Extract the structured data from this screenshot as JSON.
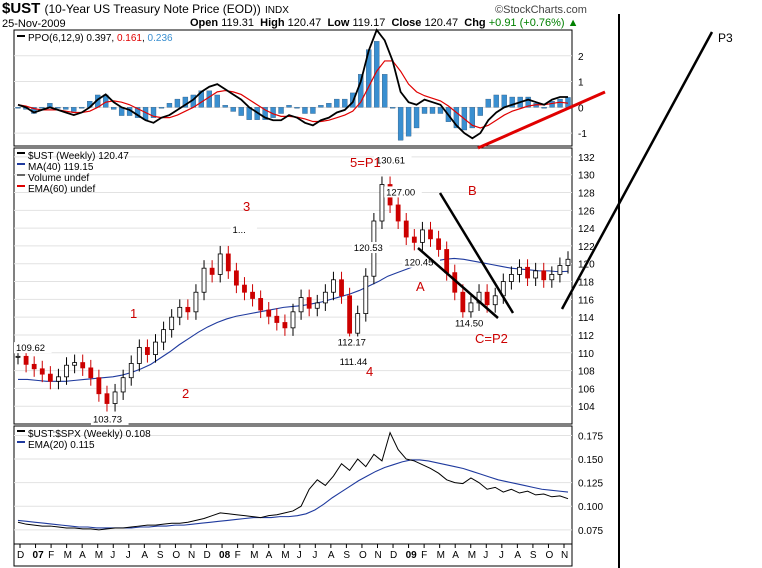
{
  "header": {
    "symbol": "$UST",
    "description": "(10-Year US Treasury Note Price (EOD))",
    "exchange": "INDX",
    "date": "25-Nov-2009",
    "open_label": "Open",
    "open": "119.31",
    "high_label": "High",
    "high": "120.47",
    "low_label": "Low",
    "low": "119.17",
    "close_label": "Close",
    "close": "120.47",
    "chg_label": "Chg",
    "chg": "+0.91 (+0.76%)",
    "logo": "©StockCharts.com"
  },
  "colors": {
    "price": "#000000",
    "ma": "#1f3a9e",
    "ema_red": "#e00000",
    "hist": "#3a8fd0",
    "annotation": "#cc0000"
  },
  "chart_data": [
    {
      "type": "line",
      "panel": "ppo",
      "legend": [
        {
          "label": "PPO(6,12,9)",
          "value": "0.397",
          "color": "#000000"
        },
        {
          "label": "",
          "value": "0.161",
          "color": "#e00000"
        },
        {
          "label": "",
          "value": "0.236",
          "color": "#3a8fd0"
        }
      ],
      "y_ticks": [
        "2",
        "1",
        "0",
        "-1"
      ],
      "ylim": [
        -1.5,
        3
      ],
      "series": [
        {
          "name": "PPO",
          "values": [
            0.1,
            0.0,
            -0.2,
            -0.1,
            0.0,
            -0.1,
            -0.2,
            -0.3,
            -0.2,
            0.0,
            0.3,
            0.5,
            0.2,
            0.0,
            -0.1,
            -0.3,
            -0.5,
            -0.6,
            -0.4,
            -0.3,
            -0.1,
            0.1,
            0.3,
            0.6,
            0.8,
            0.9,
            0.7,
            0.5,
            0.3,
            0.0,
            -0.2,
            -0.4,
            -0.5,
            -0.5,
            -0.3,
            -0.4,
            -0.6,
            -0.7,
            -0.5,
            -0.4,
            -0.2,
            -0.1,
            0.2,
            1.0,
            2.2,
            3.0,
            2.6,
            1.8,
            0.6,
            0.2,
            0.1,
            0.3,
            0.2,
            0.1,
            -0.3,
            -0.7,
            -1.0,
            -1.2,
            -1.0,
            -0.5,
            -0.2,
            0.0,
            0.1,
            0.2,
            0.3,
            0.2,
            0.1,
            0.3,
            0.4,
            0.4
          ]
        },
        {
          "name": "Signal",
          "values": [
            0.1,
            0.05,
            -0.05,
            -0.1,
            -0.1,
            -0.1,
            -0.15,
            -0.2,
            -0.2,
            -0.15,
            0.0,
            0.2,
            0.25,
            0.2,
            0.1,
            -0.05,
            -0.2,
            -0.35,
            -0.4,
            -0.4,
            -0.3,
            -0.15,
            0.0,
            0.2,
            0.4,
            0.6,
            0.65,
            0.6,
            0.5,
            0.3,
            0.1,
            -0.1,
            -0.25,
            -0.35,
            -0.35,
            -0.38,
            -0.45,
            -0.55,
            -0.55,
            -0.5,
            -0.4,
            -0.3,
            -0.15,
            0.2,
            0.8,
            1.4,
            1.8,
            1.8,
            1.4,
            0.9,
            0.6,
            0.45,
            0.35,
            0.25,
            0.05,
            -0.2,
            -0.45,
            -0.7,
            -0.8,
            -0.7,
            -0.5,
            -0.3,
            -0.15,
            -0.05,
            0.05,
            0.1,
            0.1,
            0.15,
            0.2,
            0.16
          ]
        }
      ]
    },
    {
      "type": "line",
      "panel": "price",
      "legend": [
        {
          "label": "$UST (Weekly) 120.47",
          "color": "#000000"
        },
        {
          "label": "MA(40) 119.15",
          "color": "#1f3a9e"
        },
        {
          "label": "Volume undef",
          "color": "#666666"
        },
        {
          "label": "EMA(60) undef",
          "color": "#e00000"
        }
      ],
      "y_ticks": [
        "132",
        "130",
        "128",
        "126",
        "124",
        "122",
        "120",
        "118",
        "116",
        "114",
        "112",
        "110",
        "108",
        "106",
        "104"
      ],
      "ylim": [
        102,
        133
      ],
      "x_labels": [
        "D",
        "07",
        "F",
        "M",
        "A",
        "M",
        "J",
        "J",
        "A",
        "S",
        "O",
        "N",
        "D",
        "08",
        "F",
        "M",
        "A",
        "M",
        "J",
        "J",
        "A",
        "S",
        "O",
        "N",
        "D",
        "09",
        "F",
        "M",
        "A",
        "M",
        "J",
        "J",
        "A",
        "S",
        "O",
        "N"
      ],
      "series": [
        {
          "name": "Close",
          "values": [
            109.6,
            108.7,
            108.2,
            107.6,
            106.8,
            107.3,
            108.6,
            108.9,
            108.3,
            107.2,
            105.4,
            104.3,
            105.6,
            107.2,
            108.8,
            110.6,
            109.8,
            111.2,
            112.6,
            114.0,
            115.1,
            114.6,
            116.8,
            119.5,
            118.8,
            121.1,
            119.2,
            117.6,
            116.8,
            116.1,
            114.8,
            114.1,
            113.4,
            112.8,
            114.6,
            116.2,
            115.0,
            115.6,
            116.8,
            118.2,
            116.4,
            112.2,
            114.4,
            118.6,
            124.8,
            128.9,
            126.6,
            124.8,
            123.0,
            122.4,
            123.8,
            122.8,
            121.6,
            119.0,
            116.8,
            114.6,
            115.6,
            116.8,
            115.4,
            116.4,
            118.0,
            118.8,
            119.6,
            118.4,
            119.2,
            118.2,
            118.8,
            119.8,
            120.5
          ]
        },
        {
          "name": "MA(40)",
          "values": [
            107.0,
            107.0,
            106.9,
            106.8,
            106.8,
            106.8,
            106.9,
            107.0,
            107.1,
            107.2,
            107.3,
            107.5,
            107.8,
            108.2,
            108.7,
            109.4,
            110.1,
            110.9,
            111.6,
            112.3,
            112.9,
            113.4,
            113.8,
            114.1,
            114.3,
            114.5,
            114.7,
            114.9,
            115.1,
            115.2,
            115.3,
            115.5,
            115.7,
            116.0,
            116.3,
            116.6,
            117.0,
            117.5,
            118.0,
            118.6,
            119.0,
            119.4,
            119.8,
            120.1,
            120.3,
            120.5,
            120.6,
            120.5,
            120.3,
            120.1,
            119.9,
            119.7,
            119.5,
            119.4,
            119.3,
            119.2,
            119.2,
            119.1,
            119.15
          ]
        }
      ]
    },
    {
      "type": "line",
      "panel": "ratio",
      "legend": [
        {
          "label": "$UST:$SPX (Weekly) 0.108",
          "color": "#000000"
        },
        {
          "label": "EMA(20) 0.115",
          "color": "#1f3a9e"
        }
      ],
      "y_ticks": [
        "0.175",
        "0.150",
        "0.125",
        "0.100",
        "0.075"
      ],
      "ylim": [
        0.06,
        0.185
      ],
      "series": [
        {
          "name": "Ratio",
          "values": [
            0.083,
            0.081,
            0.08,
            0.079,
            0.079,
            0.078,
            0.077,
            0.077,
            0.076,
            0.076,
            0.075,
            0.076,
            0.077,
            0.077,
            0.078,
            0.079,
            0.08,
            0.08,
            0.081,
            0.082,
            0.082,
            0.083,
            0.085,
            0.087,
            0.09,
            0.093,
            0.092,
            0.091,
            0.09,
            0.089,
            0.088,
            0.09,
            0.091,
            0.093,
            0.095,
            0.1,
            0.118,
            0.128,
            0.122,
            0.132,
            0.145,
            0.138,
            0.15,
            0.142,
            0.155,
            0.148,
            0.178,
            0.16,
            0.15,
            0.148,
            0.144,
            0.14,
            0.135,
            0.128,
            0.125,
            0.124,
            0.13,
            0.125,
            0.118,
            0.12,
            0.115,
            0.118,
            0.114,
            0.116,
            0.112,
            0.113,
            0.11,
            0.111,
            0.108
          ]
        },
        {
          "name": "EMA(20)",
          "values": [
            0.085,
            0.084,
            0.083,
            0.082,
            0.081,
            0.08,
            0.079,
            0.078,
            0.078,
            0.077,
            0.077,
            0.077,
            0.077,
            0.077,
            0.078,
            0.078,
            0.079,
            0.079,
            0.08,
            0.08,
            0.081,
            0.082,
            0.083,
            0.084,
            0.085,
            0.086,
            0.087,
            0.088,
            0.088,
            0.088,
            0.089,
            0.089,
            0.09,
            0.092,
            0.096,
            0.102,
            0.109,
            0.115,
            0.121,
            0.127,
            0.132,
            0.137,
            0.141,
            0.144,
            0.147,
            0.149,
            0.149,
            0.148,
            0.146,
            0.144,
            0.142,
            0.14,
            0.137,
            0.134,
            0.131,
            0.128,
            0.126,
            0.124,
            0.122,
            0.12,
            0.118,
            0.117,
            0.116,
            0.115
          ]
        }
      ]
    }
  ],
  "price_labels": [
    "109.62",
    "103.73",
    "112.17",
    "111.44",
    "120.53",
    "130.61",
    "127.00",
    "120.45",
    "114.50",
    "1..."
  ],
  "wave_labels": [
    "1",
    "2",
    "3",
    "4",
    "5=P1",
    "A",
    "B",
    "C=P2",
    "P3"
  ]
}
